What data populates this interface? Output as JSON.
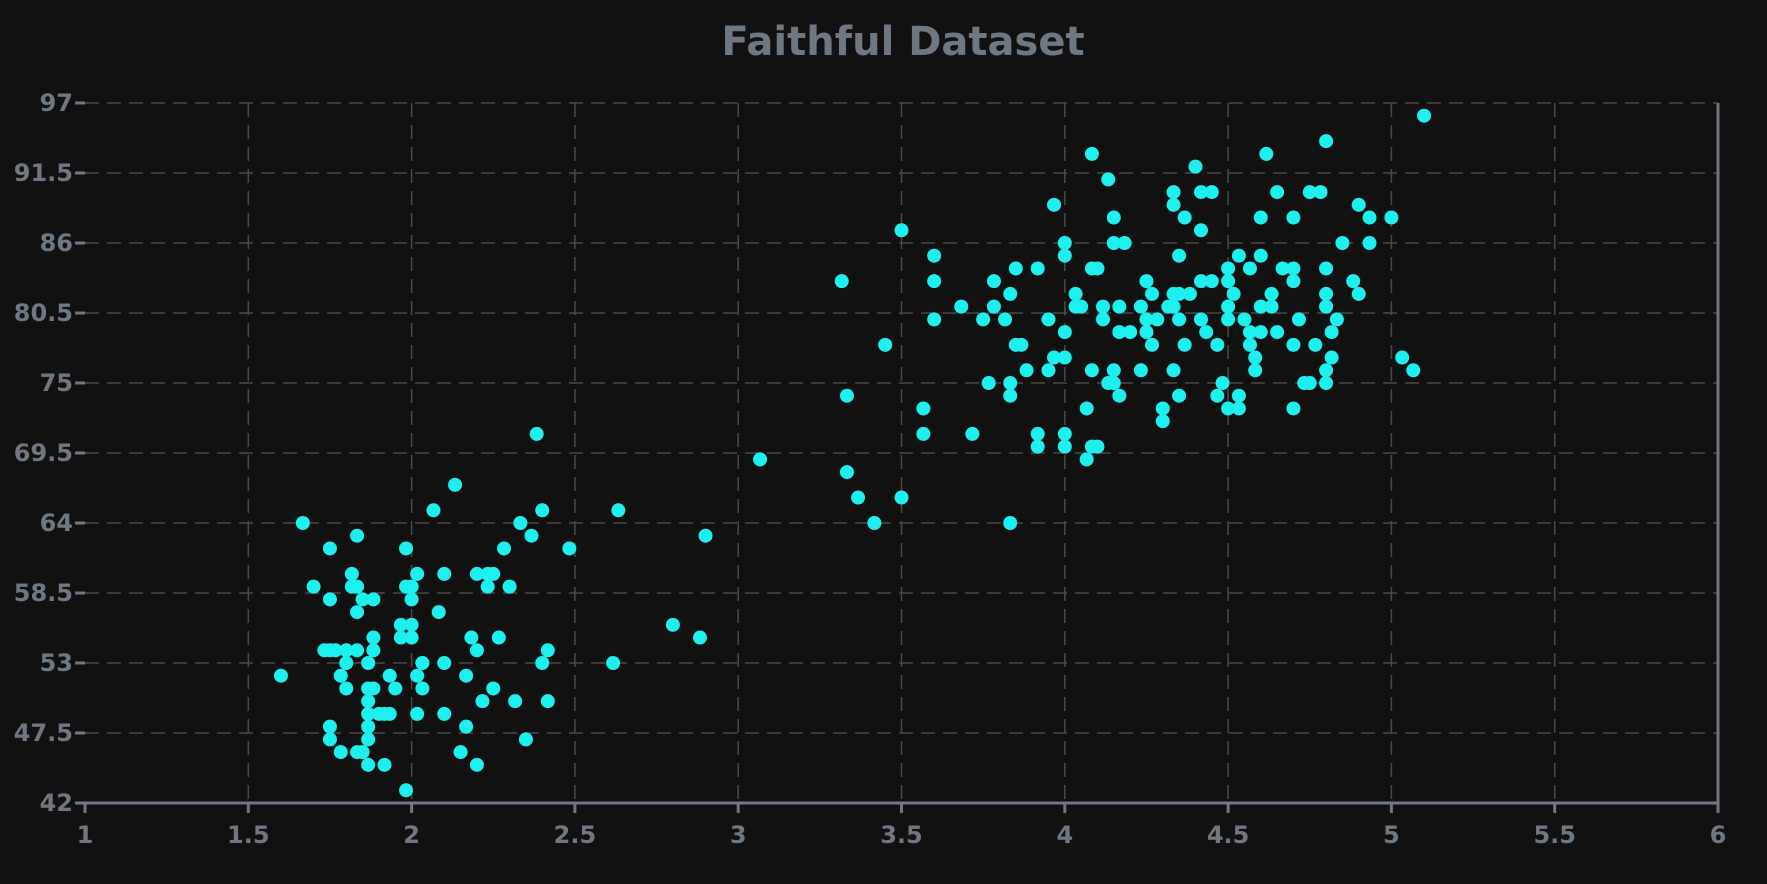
{
  "chart_data": {
    "type": "scatter",
    "title": "Faithful Dataset",
    "xlabel": "",
    "ylabel": "",
    "xlim": [
      1,
      6
    ],
    "ylim": [
      42,
      97
    ],
    "x_ticks": [
      "1",
      "1.5",
      "2",
      "2.5",
      "3",
      "3.5",
      "4",
      "4.5",
      "5",
      "5.5",
      "6"
    ],
    "y_ticks": [
      "42",
      "47.5",
      "53",
      "58.5",
      "64",
      "69.5",
      "75",
      "80.5",
      "86",
      "91.5",
      "97"
    ],
    "grid": true,
    "colors": {
      "background": "#111111",
      "point": "#1ef0f0",
      "text": "#6e7882",
      "grid": "#4a4a4a"
    },
    "series": [
      {
        "points": [
          [
            1.6,
            52
          ],
          [
            1.667,
            64
          ],
          [
            1.7,
            59
          ],
          [
            1.733,
            54
          ],
          [
            1.75,
            54
          ],
          [
            1.75,
            62
          ],
          [
            1.75,
            58
          ],
          [
            1.75,
            48
          ],
          [
            1.75,
            47
          ],
          [
            1.767,
            54
          ],
          [
            1.783,
            46
          ],
          [
            1.783,
            52
          ],
          [
            1.8,
            51
          ],
          [
            1.8,
            53
          ],
          [
            1.8,
            54
          ],
          [
            1.817,
            60
          ],
          [
            1.817,
            59
          ],
          [
            1.833,
            46
          ],
          [
            1.833,
            63
          ],
          [
            1.833,
            59
          ],
          [
            1.833,
            57
          ],
          [
            1.833,
            54
          ],
          [
            1.85,
            58
          ],
          [
            1.85,
            46
          ],
          [
            1.867,
            45
          ],
          [
            1.867,
            47
          ],
          [
            1.867,
            48
          ],
          [
            1.867,
            49
          ],
          [
            1.867,
            50
          ],
          [
            1.867,
            51
          ],
          [
            1.867,
            53
          ],
          [
            1.883,
            51
          ],
          [
            1.883,
            55
          ],
          [
            1.883,
            54
          ],
          [
            1.883,
            58
          ],
          [
            1.9,
            49
          ],
          [
            1.917,
            49
          ],
          [
            1.917,
            45
          ],
          [
            1.933,
            52
          ],
          [
            1.933,
            49
          ],
          [
            1.95,
            51
          ],
          [
            1.967,
            55
          ],
          [
            1.967,
            56
          ],
          [
            1.983,
            43
          ],
          [
            1.983,
            59
          ],
          [
            1.983,
            62
          ],
          [
            2.0,
            56
          ],
          [
            2.0,
            55
          ],
          [
            2.0,
            58
          ],
          [
            2.0,
            59
          ],
          [
            2.017,
            52
          ],
          [
            2.017,
            49
          ],
          [
            2.017,
            60
          ],
          [
            2.033,
            51
          ],
          [
            2.033,
            53
          ],
          [
            2.067,
            65
          ],
          [
            2.083,
            57
          ],
          [
            2.1,
            49
          ],
          [
            2.1,
            53
          ],
          [
            2.1,
            60
          ],
          [
            2.133,
            67
          ],
          [
            2.15,
            46
          ],
          [
            2.167,
            52
          ],
          [
            2.167,
            48
          ],
          [
            2.183,
            55
          ],
          [
            2.2,
            54
          ],
          [
            2.2,
            45
          ],
          [
            2.2,
            60
          ],
          [
            2.217,
            50
          ],
          [
            2.233,
            59
          ],
          [
            2.233,
            60
          ],
          [
            2.25,
            51
          ],
          [
            2.25,
            60
          ],
          [
            2.267,
            55
          ],
          [
            2.283,
            62
          ],
          [
            2.3,
            59
          ],
          [
            2.317,
            50
          ],
          [
            2.333,
            64
          ],
          [
            2.35,
            47
          ],
          [
            2.367,
            63
          ],
          [
            2.383,
            71
          ],
          [
            2.4,
            65
          ],
          [
            2.4,
            53
          ],
          [
            2.417,
            54
          ],
          [
            2.417,
            50
          ],
          [
            2.483,
            62
          ],
          [
            2.617,
            53
          ],
          [
            2.633,
            65
          ],
          [
            2.8,
            56
          ],
          [
            2.883,
            55
          ],
          [
            2.9,
            63
          ],
          [
            3.067,
            69
          ],
          [
            3.317,
            83
          ],
          [
            3.333,
            74
          ],
          [
            3.333,
            68
          ],
          [
            3.367,
            66
          ],
          [
            3.417,
            64
          ],
          [
            3.45,
            78
          ],
          [
            3.5,
            87
          ],
          [
            3.5,
            66
          ],
          [
            3.567,
            73
          ],
          [
            3.567,
            71
          ],
          [
            3.6,
            80
          ],
          [
            3.6,
            85
          ],
          [
            3.6,
            83
          ],
          [
            3.683,
            81
          ],
          [
            3.717,
            71
          ],
          [
            3.75,
            80
          ],
          [
            3.767,
            75
          ],
          [
            3.783,
            81
          ],
          [
            3.783,
            83
          ],
          [
            3.817,
            80
          ],
          [
            3.833,
            82
          ],
          [
            3.833,
            75
          ],
          [
            3.833,
            74
          ],
          [
            3.833,
            64
          ],
          [
            3.85,
            78
          ],
          [
            3.85,
            84
          ],
          [
            3.867,
            78
          ],
          [
            3.883,
            76
          ],
          [
            3.917,
            71
          ],
          [
            3.917,
            70
          ],
          [
            3.917,
            84
          ],
          [
            3.95,
            80
          ],
          [
            3.95,
            76
          ],
          [
            3.967,
            89
          ],
          [
            3.967,
            77
          ],
          [
            4.0,
            86
          ],
          [
            4.0,
            85
          ],
          [
            4.0,
            79
          ],
          [
            4.0,
            77
          ],
          [
            4.0,
            70
          ],
          [
            4.0,
            71
          ],
          [
            4.033,
            82
          ],
          [
            4.033,
            81
          ],
          [
            4.05,
            81
          ],
          [
            4.067,
            73
          ],
          [
            4.067,
            69
          ],
          [
            4.083,
            93
          ],
          [
            4.083,
            84
          ],
          [
            4.083,
            76
          ],
          [
            4.083,
            70
          ],
          [
            4.1,
            84
          ],
          [
            4.1,
            70
          ],
          [
            4.117,
            81
          ],
          [
            4.117,
            80
          ],
          [
            4.133,
            91
          ],
          [
            4.133,
            75
          ],
          [
            4.15,
            75
          ],
          [
            4.15,
            76
          ],
          [
            4.15,
            86
          ],
          [
            4.15,
            88
          ],
          [
            4.167,
            79
          ],
          [
            4.167,
            81
          ],
          [
            4.167,
            74
          ],
          [
            4.183,
            86
          ],
          [
            4.2,
            79
          ],
          [
            4.233,
            76
          ],
          [
            4.233,
            81
          ],
          [
            4.25,
            83
          ],
          [
            4.25,
            80
          ],
          [
            4.25,
            79
          ],
          [
            4.267,
            78
          ],
          [
            4.267,
            82
          ],
          [
            4.283,
            80
          ],
          [
            4.3,
            73
          ],
          [
            4.3,
            72
          ],
          [
            4.317,
            81
          ],
          [
            4.333,
            90
          ],
          [
            4.333,
            89
          ],
          [
            4.333,
            82
          ],
          [
            4.333,
            76
          ],
          [
            4.333,
            81
          ],
          [
            4.35,
            85
          ],
          [
            4.35,
            82
          ],
          [
            4.35,
            80
          ],
          [
            4.35,
            74
          ],
          [
            4.367,
            78
          ],
          [
            4.367,
            88
          ],
          [
            4.383,
            82
          ],
          [
            4.4,
            92
          ],
          [
            4.417,
            87
          ],
          [
            4.417,
            90
          ],
          [
            4.417,
            80
          ],
          [
            4.417,
            83
          ],
          [
            4.433,
            79
          ],
          [
            4.45,
            90
          ],
          [
            4.45,
            83
          ],
          [
            4.467,
            78
          ],
          [
            4.467,
            74
          ],
          [
            4.483,
            75
          ],
          [
            4.5,
            73
          ],
          [
            4.5,
            81
          ],
          [
            4.5,
            80
          ],
          [
            4.5,
            83
          ],
          [
            4.5,
            84
          ],
          [
            4.517,
            82
          ],
          [
            4.533,
            85
          ],
          [
            4.533,
            74
          ],
          [
            4.533,
            73
          ],
          [
            4.55,
            80
          ],
          [
            4.567,
            84
          ],
          [
            4.567,
            79
          ],
          [
            4.567,
            78
          ],
          [
            4.583,
            77
          ],
          [
            4.583,
            76
          ],
          [
            4.6,
            85
          ],
          [
            4.6,
            88
          ],
          [
            4.6,
            81
          ],
          [
            4.6,
            79
          ],
          [
            4.617,
            93
          ],
          [
            4.633,
            82
          ],
          [
            4.633,
            81
          ],
          [
            4.65,
            90
          ],
          [
            4.65,
            79
          ],
          [
            4.667,
            84
          ],
          [
            4.7,
            83
          ],
          [
            4.7,
            88
          ],
          [
            4.7,
            84
          ],
          [
            4.7,
            78
          ],
          [
            4.7,
            73
          ],
          [
            4.717,
            80
          ],
          [
            4.733,
            75
          ],
          [
            4.75,
            90
          ],
          [
            4.75,
            75
          ],
          [
            4.767,
            78
          ],
          [
            4.783,
            90
          ],
          [
            4.8,
            94
          ],
          [
            4.8,
            84
          ],
          [
            4.8,
            82
          ],
          [
            4.8,
            81
          ],
          [
            4.8,
            76
          ],
          [
            4.8,
            75
          ],
          [
            4.817,
            79
          ],
          [
            4.817,
            77
          ],
          [
            4.833,
            80
          ],
          [
            4.85,
            86
          ],
          [
            4.883,
            83
          ],
          [
            4.9,
            82
          ],
          [
            4.9,
            89
          ],
          [
            4.933,
            88
          ],
          [
            4.933,
            86
          ],
          [
            5.0,
            88
          ],
          [
            5.033,
            77
          ],
          [
            5.067,
            76
          ],
          [
            5.1,
            96
          ]
        ]
      }
    ]
  }
}
